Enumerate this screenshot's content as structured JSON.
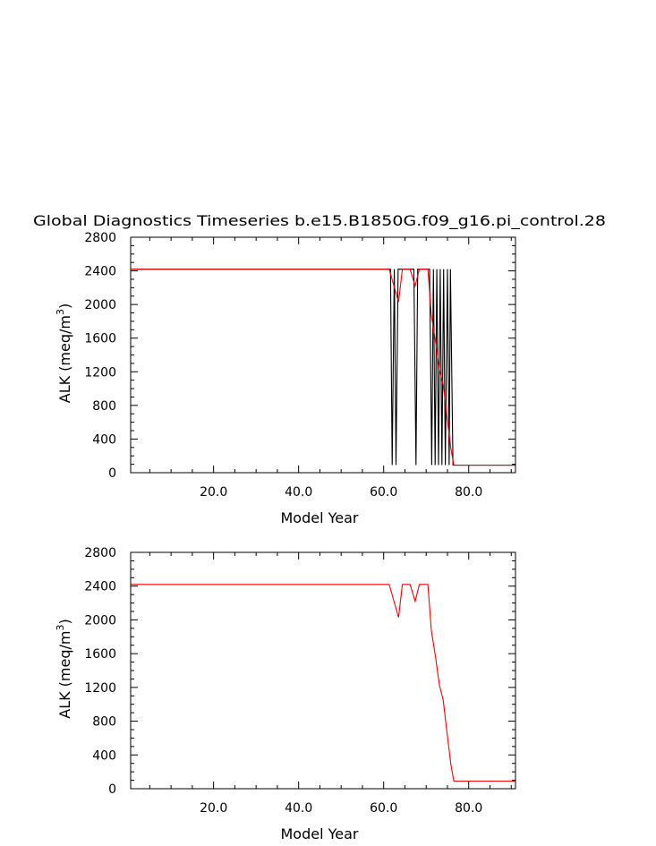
{
  "title": "Global Diagnostics Timeseries b.e15.B1850G.f09_g16.pi_control.28",
  "colors": {
    "raw": "#000000",
    "smoothed": "#ff0000",
    "axis": "#000000",
    "background": "#ffffff"
  },
  "chart_data": [
    {
      "type": "line",
      "title": "Global Diagnostics Timeseries b.e15.B1850G.f09_g16.pi_control.28",
      "xlabel": "Model Year",
      "ylabel_main": "ALK (meq/m",
      "ylabel_sup": "3",
      "ylabel_end": ")",
      "xlim": [
        0.5,
        91
      ],
      "ylim": [
        0,
        2800
      ],
      "xticks": [
        20,
        40,
        60,
        80
      ],
      "xtick_labels": [
        "20.0",
        "40.0",
        "60.0",
        "80.0"
      ],
      "yticks": [
        0,
        400,
        800,
        1200,
        1600,
        2000,
        2400,
        2800
      ],
      "ytick_labels": [
        "0",
        "400",
        "800",
        "1200",
        "1600",
        "2000",
        "2400",
        "2800"
      ],
      "grid": false,
      "series": [
        {
          "color": "#000000",
          "x": [
            0.5,
            61.6,
            62.0,
            62.5,
            62.9,
            63.4,
            64.0,
            67.1,
            67.6,
            68.0,
            70.8,
            71.3,
            71.7,
            72.1,
            72.5,
            72.9,
            73.3,
            73.7,
            74.1,
            74.5,
            75.0,
            75.4,
            75.7,
            76.3,
            91.0
          ],
          "y": [
            2420,
            2420,
            90,
            2420,
            90,
            2420,
            2420,
            2420,
            90,
            2420,
            2420,
            90,
            2420,
            90,
            2420,
            90,
            2420,
            90,
            2420,
            90,
            2420,
            90,
            2420,
            90,
            90
          ]
        },
        {
          "color": "#ff0000",
          "x": [
            0.5,
            61.3,
            62.2,
            63.5,
            64.4,
            66.2,
            67.4,
            68.4,
            70.4,
            71.2,
            72.2,
            73.1,
            74.0,
            75.0,
            75.8,
            76.5,
            91.0
          ],
          "y": [
            2420,
            2420,
            2260,
            2030,
            2420,
            2420,
            2220,
            2420,
            2420,
            1880,
            1560,
            1230,
            1050,
            620,
            290,
            90,
            90
          ]
        }
      ]
    },
    {
      "type": "line",
      "xlabel": "Model Year",
      "ylabel_main": "ALK (meq/m",
      "ylabel_sup": "3",
      "ylabel_end": ")",
      "xlim": [
        0.5,
        91
      ],
      "ylim": [
        0,
        2800
      ],
      "xticks": [
        20,
        40,
        60,
        80
      ],
      "xtick_labels": [
        "20.0",
        "40.0",
        "60.0",
        "80.0"
      ],
      "yticks": [
        0,
        400,
        800,
        1200,
        1600,
        2000,
        2400,
        2800
      ],
      "ytick_labels": [
        "0",
        "400",
        "800",
        "1200",
        "1600",
        "2000",
        "2400",
        "2800"
      ],
      "grid": false,
      "series": [
        {
          "color": "#ff0000",
          "x": [
            0.5,
            61.3,
            62.2,
            63.5,
            64.4,
            66.2,
            67.4,
            68.4,
            70.4,
            71.2,
            72.2,
            73.1,
            74.0,
            75.0,
            75.8,
            76.5,
            91.0
          ],
          "y": [
            2420,
            2420,
            2260,
            2030,
            2420,
            2420,
            2220,
            2420,
            2420,
            1880,
            1560,
            1230,
            1050,
            620,
            290,
            90,
            90
          ]
        }
      ]
    }
  ]
}
